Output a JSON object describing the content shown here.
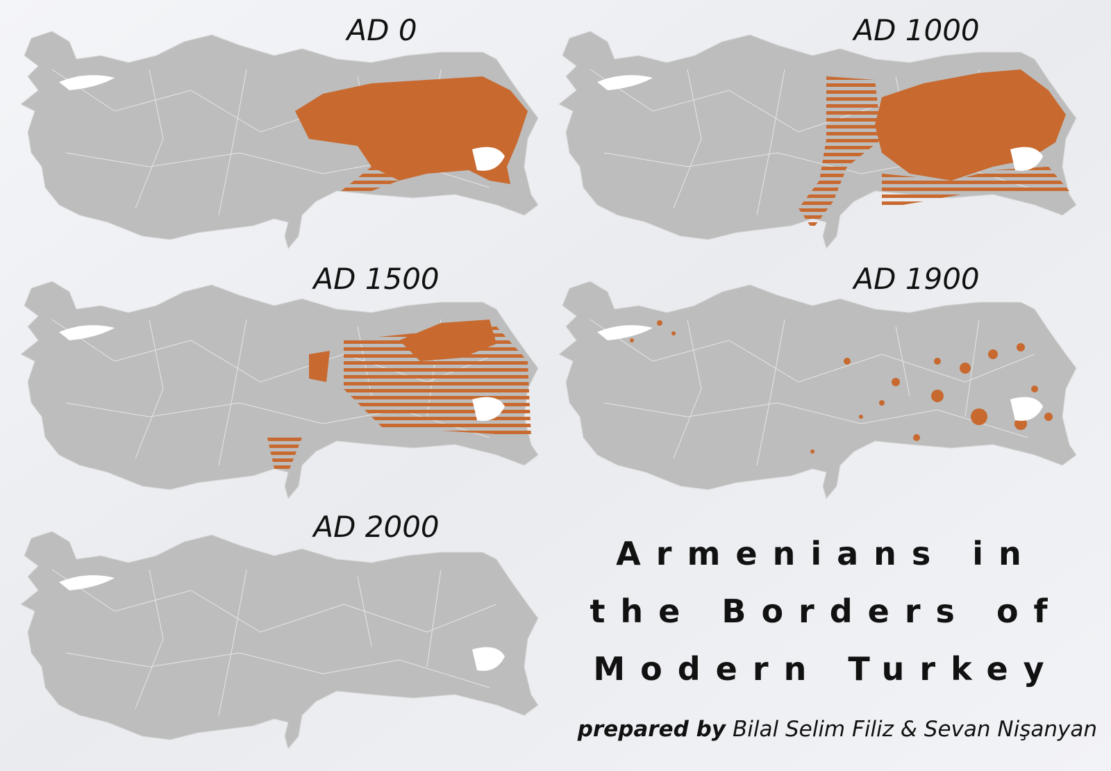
{
  "maps": [
    {
      "label": "AD 0"
    },
    {
      "label": "AD 1000"
    },
    {
      "label": "AD 1500"
    },
    {
      "label": "AD 1900"
    },
    {
      "label": "AD 2000"
    }
  ],
  "title": {
    "lines": [
      "Armenians in",
      "the Borders of",
      "Modern Turkey"
    ]
  },
  "credit": {
    "prefix": "prepared by",
    "authors": "Bilal Selim Filiz & Sevan Nişanyan"
  }
}
